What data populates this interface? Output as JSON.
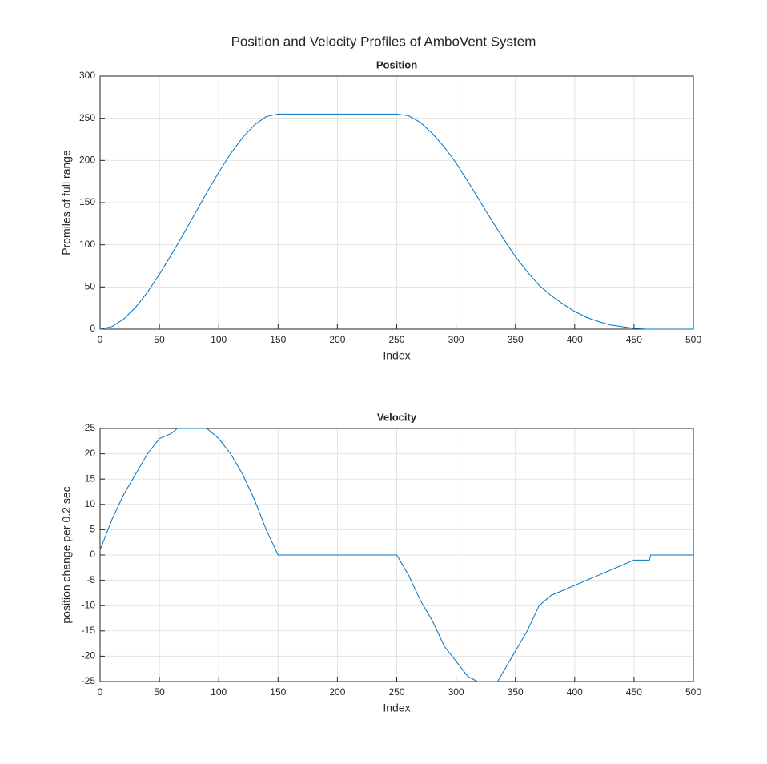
{
  "title": "Position and Velocity Profiles of AmboVent System",
  "chart_data": [
    {
      "type": "line",
      "title": "Position",
      "x_label": "Index",
      "y_label": "Promiles of full range",
      "x": [
        0,
        10,
        20,
        30,
        40,
        50,
        60,
        70,
        80,
        90,
        100,
        110,
        120,
        130,
        140,
        150,
        160,
        170,
        180,
        190,
        200,
        210,
        220,
        230,
        240,
        250,
        260,
        270,
        280,
        290,
        300,
        310,
        320,
        330,
        340,
        350,
        360,
        370,
        380,
        390,
        400,
        410,
        420,
        430,
        440,
        450,
        460,
        470,
        480,
        490,
        500
      ],
      "values": [
        0,
        3,
        12,
        26,
        44,
        65,
        88,
        112,
        137,
        162,
        186,
        208,
        227,
        242,
        252,
        255,
        255,
        255,
        255,
        255,
        255,
        255,
        255,
        255,
        255,
        255,
        253,
        245,
        232,
        216,
        197,
        175,
        152,
        129,
        107,
        86,
        68,
        52,
        40,
        30,
        21,
        14,
        9,
        5,
        3,
        1,
        0,
        0,
        0,
        0,
        0
      ],
      "color": "#0072bd",
      "xlim": [
        0,
        500
      ],
      "xticks": [
        0,
        50,
        100,
        150,
        200,
        250,
        300,
        350,
        400,
        450,
        500
      ],
      "ylim": [
        0,
        300
      ],
      "yticks": [
        0,
        50,
        100,
        150,
        200,
        250,
        300
      ],
      "grid": true
    },
    {
      "type": "line",
      "title": "Velocity",
      "x_label": "Index",
      "y_label": "position change per 0.2 sec",
      "x": [
        0,
        10,
        20,
        30,
        40,
        50,
        60,
        65,
        90,
        100,
        110,
        120,
        130,
        140,
        150,
        250,
        260,
        270,
        280,
        290,
        300,
        310,
        318,
        335,
        340,
        350,
        360,
        370,
        380,
        390,
        400,
        410,
        420,
        430,
        440,
        450,
        463,
        464,
        500
      ],
      "values": [
        1,
        7,
        12,
        16,
        20,
        23,
        24,
        25,
        25,
        23,
        20,
        16,
        11,
        5,
        0,
        0,
        -4,
        -9,
        -13,
        -18,
        -21,
        -24,
        -25,
        -25,
        -23,
        -19,
        -15,
        -10,
        -8,
        -7,
        -6,
        -5,
        -4,
        -3,
        -2,
        -1,
        -1,
        0,
        0
      ],
      "color": "#0072bd",
      "xlim": [
        0,
        500
      ],
      "xticks": [
        0,
        50,
        100,
        150,
        200,
        250,
        300,
        350,
        400,
        450,
        500
      ],
      "ylim": [
        -25,
        25
      ],
      "yticks": [
        -25,
        -20,
        -15,
        -10,
        -5,
        0,
        5,
        10,
        15,
        20,
        25
      ],
      "grid": true
    }
  ]
}
